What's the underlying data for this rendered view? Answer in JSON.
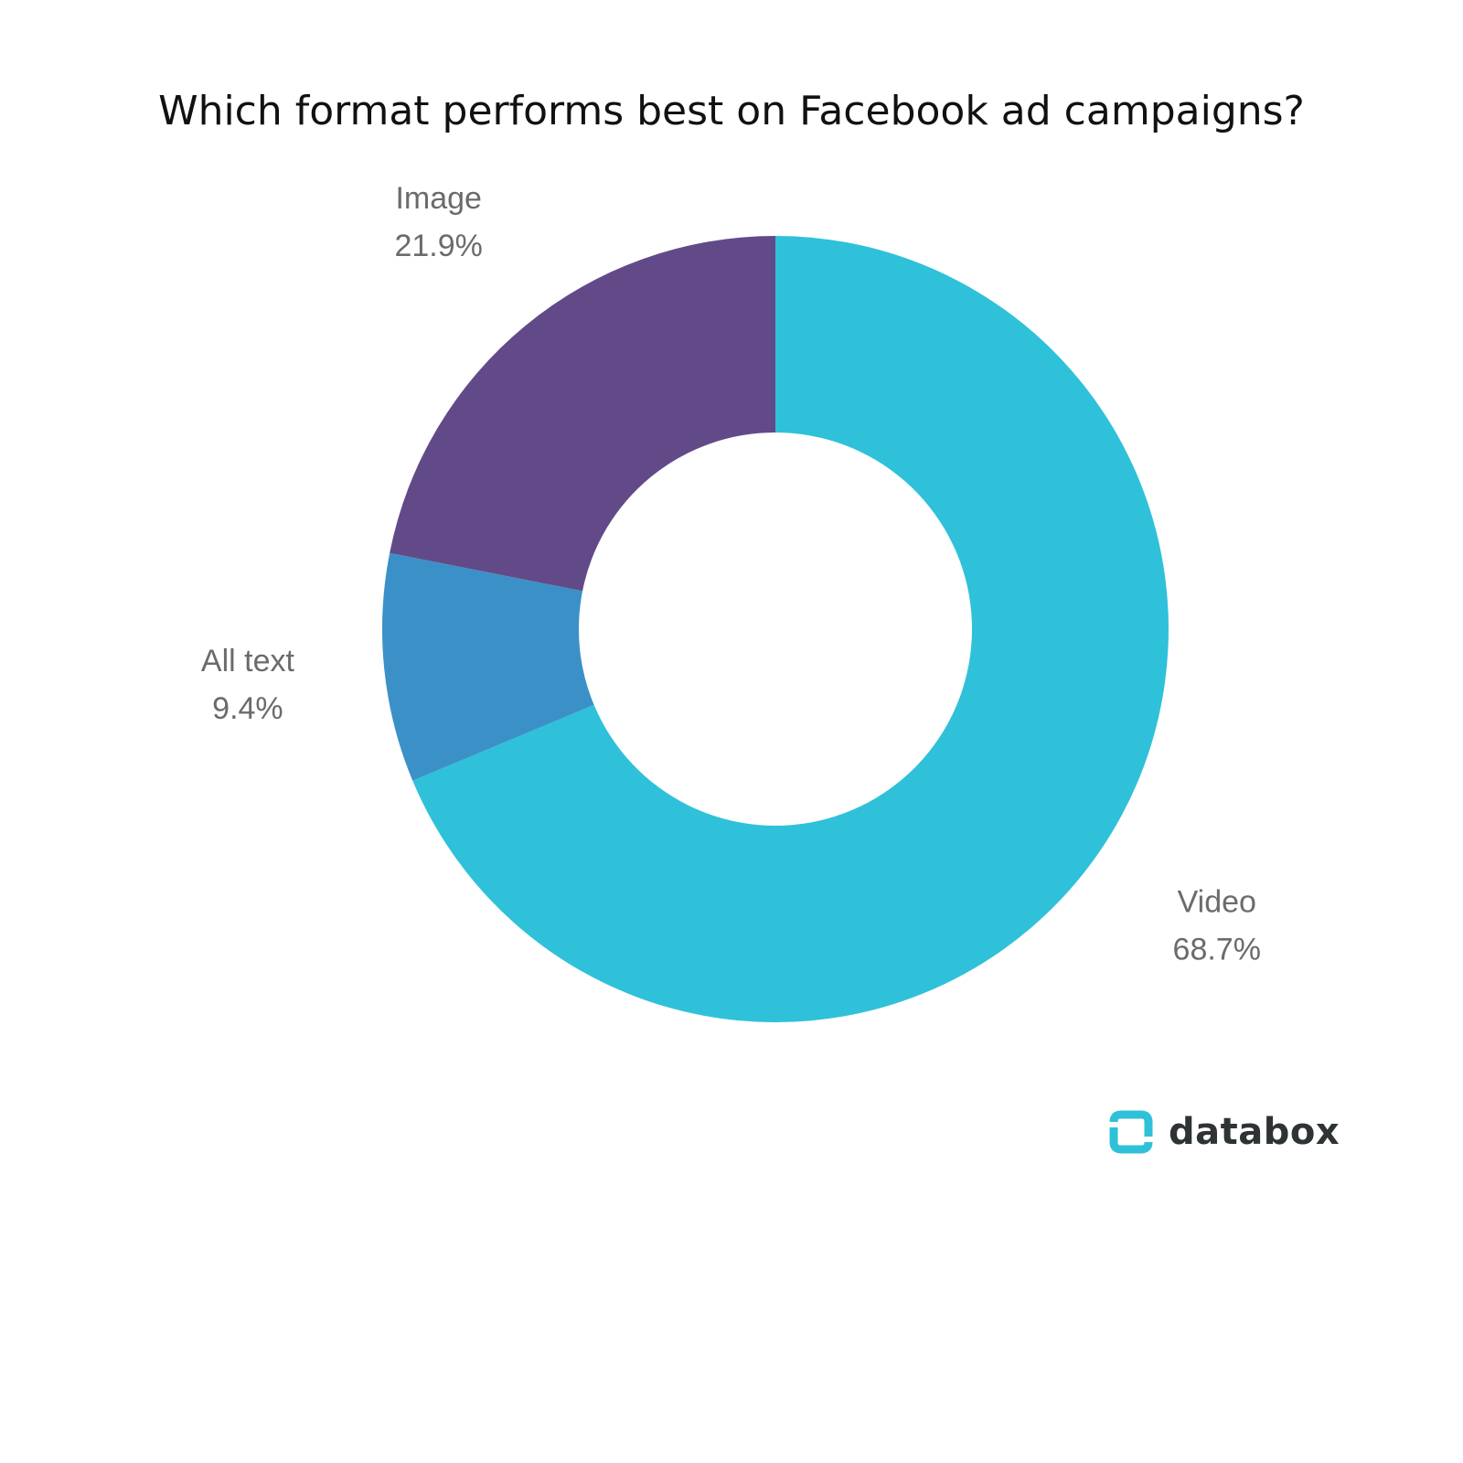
{
  "chart_data": {
    "type": "pie",
    "variant": "donut",
    "title": "Which format performs best on Facebook ad campaigns?",
    "slices": [
      {
        "label": "Video",
        "value": 68.7,
        "display": "68.7%",
        "color": "#2fc1d9"
      },
      {
        "label": "All text",
        "value": 9.4,
        "display": "9.4%",
        "color": "#3b91c7"
      },
      {
        "label": "Image",
        "value": 21.9,
        "display": "21.9%",
        "color": "#624a89"
      }
    ],
    "legend": "none"
  },
  "brand": {
    "name": "databox",
    "logo_icon": "databox-logo-icon",
    "logo_color": "#2fc1d9"
  }
}
